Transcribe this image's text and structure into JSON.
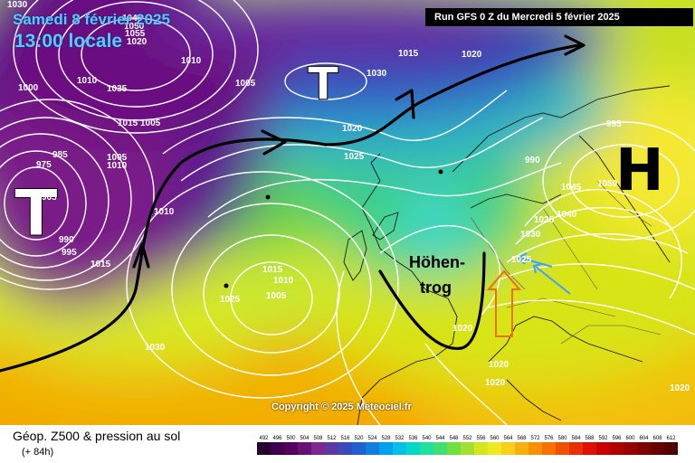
{
  "header": {
    "date": "Samedi 8 février 2025",
    "time": "13:00 locale",
    "run": "Run GFS 0 Z du Mercredi 5 février 2025"
  },
  "map": {
    "copyright": "Copyright © 2025 Meteociel.fr",
    "pressure_centers": [
      {
        "symbol": "T",
        "type": "low",
        "color": "#ffffff"
      },
      {
        "symbol": "T",
        "type": "low",
        "color": "#ffffff"
      },
      {
        "symbol": "H",
        "type": "high",
        "color": "#000000"
      }
    ],
    "annotation": {
      "line1": "Höhen-",
      "line2": "trog"
    },
    "isobar_labels": [
      "1030",
      "1010",
      "1035",
      "1045",
      "1050",
      "1055",
      "1020",
      "1015",
      "1005",
      "985",
      "975",
      "965",
      "1010",
      "990",
      "995",
      "1005",
      "1010",
      "1015",
      "1020",
      "1025",
      "1030",
      "1020",
      "1015",
      "1010",
      "1005",
      "1025",
      "1030",
      "1020",
      "1020",
      "1020",
      "1045",
      "1050",
      "1040",
      "1035",
      "1030",
      "1025",
      "1020",
      "1015",
      "1010",
      "1005",
      "1000",
      "995",
      "990"
    ]
  },
  "legend": {
    "title": "Géop. Z500 & pression au sol",
    "subtitle": "(+ 84h)",
    "scale_values": [
      "492",
      "496",
      "500",
      "504",
      "508",
      "512",
      "516",
      "520",
      "524",
      "528",
      "532",
      "536",
      "540",
      "544",
      "548",
      "552",
      "556",
      "560",
      "564",
      "568",
      "572",
      "576",
      "580",
      "584",
      "588",
      "592",
      "596",
      "600",
      "604",
      "608",
      "612"
    ],
    "scale_colors": [
      "#2a0030",
      "#3e0048",
      "#55005e",
      "#6a0f78",
      "#7a2a8e",
      "#5a3aa0",
      "#3a4ab8",
      "#2060d0",
      "#1080e0",
      "#00a0f0",
      "#00c0e8",
      "#00d8c8",
      "#20e0a0",
      "#40e070",
      "#70e040",
      "#a0e030",
      "#d0e820",
      "#f0e820",
      "#f8d018",
      "#f8b010",
      "#f89000",
      "#f87000",
      "#f05000",
      "#e83000",
      "#e01000",
      "#c80000",
      "#b00000",
      "#980000",
      "#800000",
      "#680000",
      "#500000"
    ]
  }
}
